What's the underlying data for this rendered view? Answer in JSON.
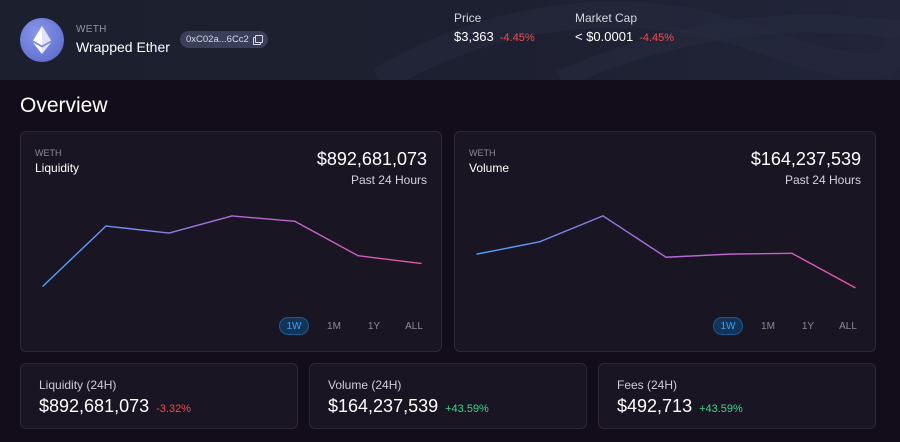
{
  "token": {
    "symbol": "WETH",
    "name": "Wrapped Ether",
    "address": "0xC02a...6Cc2"
  },
  "header_stats": {
    "price": {
      "label": "Price",
      "value": "$3,363",
      "change": "-4.45%"
    },
    "market_cap": {
      "label": "Market Cap",
      "value": "< $0.0001",
      "change": "-4.45%"
    }
  },
  "overview": {
    "title": "Overview",
    "ranges": [
      "1W",
      "1M",
      "1Y",
      "ALL"
    ],
    "active_range": "1W",
    "liquidity_card": {
      "token": "WETH",
      "title": "Liquidity",
      "value": "$892,681,073",
      "period": "Past 24 Hours"
    },
    "volume_card": {
      "token": "WETH",
      "title": "Volume",
      "value": "$164,237,539",
      "period": "Past 24 Hours"
    }
  },
  "metrics": [
    {
      "label": "Liquidity (24H)",
      "value": "$892,681,073",
      "change": "-3.32%",
      "direction": "down"
    },
    {
      "label": "Volume (24H)",
      "value": "$164,237,539",
      "change": "+43.59%",
      "direction": "up"
    },
    {
      "label": "Fees (24H)",
      "value": "$492,713",
      "change": "+43.59%",
      "direction": "up"
    }
  ],
  "chart_data": [
    {
      "type": "line",
      "name": "Liquidity",
      "x": [
        1,
        2,
        3,
        4,
        5,
        6,
        7
      ],
      "values": [
        0.05,
        0.82,
        0.73,
        0.95,
        0.88,
        0.44,
        0.34
      ],
      "ylim": [
        0,
        1
      ],
      "colors": [
        "#4aa3ff",
        "#b06ad8",
        "#e05aa8"
      ],
      "grid": false,
      "legend": "none"
    },
    {
      "type": "line",
      "name": "Volume",
      "x": [
        1,
        2,
        3,
        4,
        5,
        6,
        7
      ],
      "values": [
        0.46,
        0.62,
        0.95,
        0.42,
        0.46,
        0.47,
        0.03
      ],
      "ylim": [
        0,
        1
      ],
      "colors": [
        "#4aa3ff",
        "#b06ad8",
        "#e05aa8"
      ],
      "grid": false,
      "legend": "none"
    }
  ],
  "colors": {
    "background": "#130d1b",
    "header_bg": "#1d2030",
    "negative": "#f04b4b",
    "positive": "#3ed487",
    "active_range": "#3aa0ff"
  }
}
